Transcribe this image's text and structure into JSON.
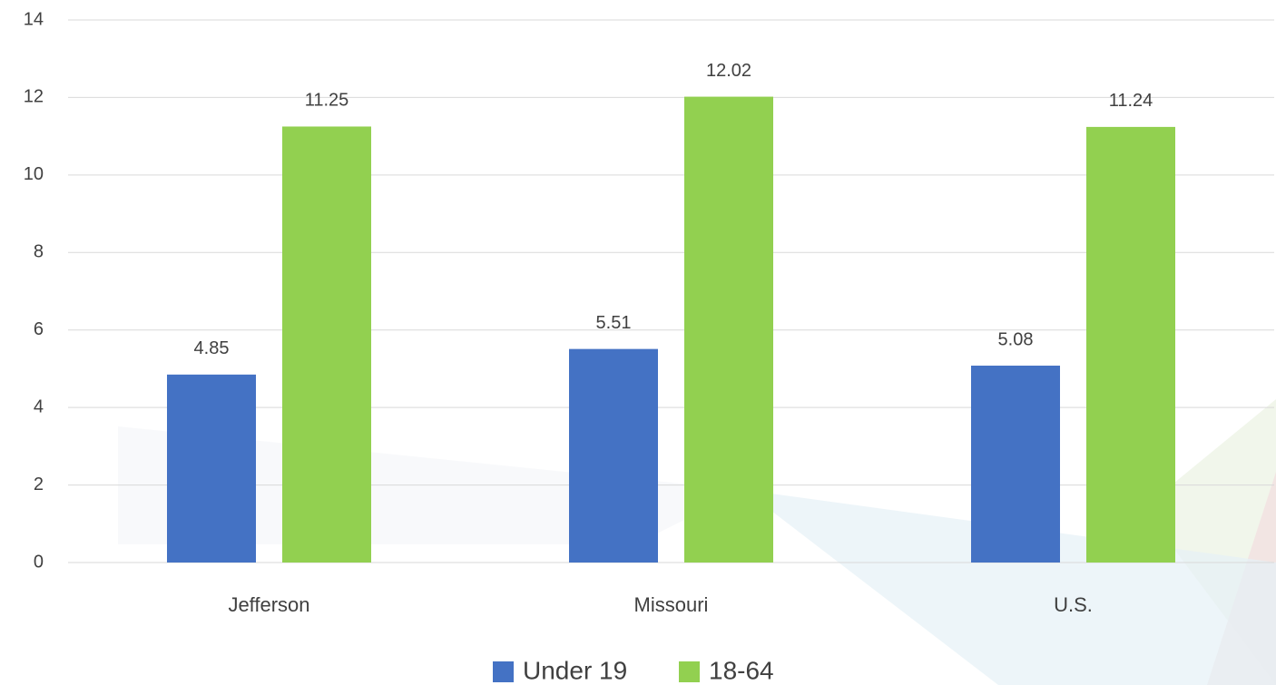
{
  "chart_data": {
    "type": "bar",
    "categories": [
      "Jefferson",
      "Missouri",
      "U.S."
    ],
    "series": [
      {
        "name": "Under 19",
        "color": "#4472c4",
        "values": [
          4.85,
          5.51,
          5.08
        ]
      },
      {
        "name": "18-64",
        "color": "#92d050",
        "values": [
          11.25,
          12.02,
          11.24
        ]
      }
    ],
    "ylim": [
      0,
      14
    ],
    "yticks": [
      0,
      2,
      4,
      6,
      8,
      10,
      12,
      14
    ],
    "grid": true,
    "legend": "bottom"
  }
}
